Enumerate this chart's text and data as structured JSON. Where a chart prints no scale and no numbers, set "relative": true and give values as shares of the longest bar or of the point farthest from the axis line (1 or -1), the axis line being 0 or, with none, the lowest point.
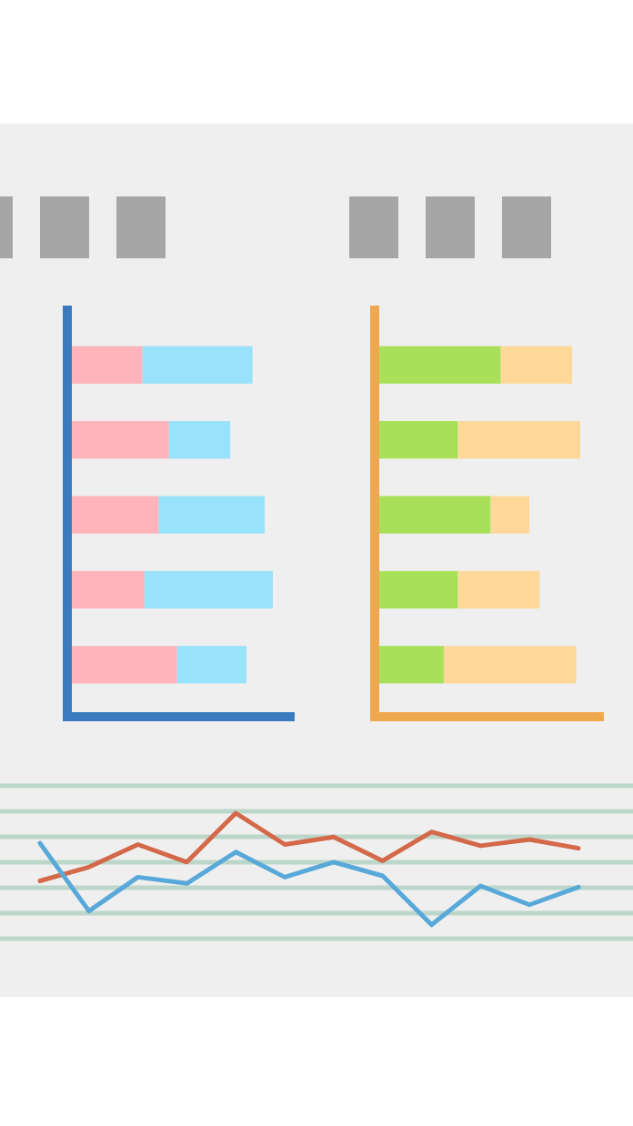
{
  "chart_data": [
    {
      "type": "bar",
      "orientation": "horizontal",
      "stacked": true,
      "relative": true,
      "categories": [
        null,
        null,
        null,
        null,
        null
      ],
      "series": [
        {
          "color": "#ffb3ba",
          "values": [
            0.36,
            0.49,
            0.44,
            0.37,
            0.53
          ]
        },
        {
          "color": "#98e2fb",
          "values": [
            0.54,
            0.3,
            0.52,
            0.63,
            0.34
          ]
        }
      ]
    },
    {
      "type": "bar",
      "orientation": "horizontal",
      "stacked": true,
      "relative": true,
      "categories": [
        null,
        null,
        null,
        null,
        null
      ],
      "series": [
        {
          "color": "#a8e05a",
          "values": [
            0.61,
            0.4,
            0.56,
            0.4,
            0.33
          ]
        },
        {
          "color": "#fdd899",
          "values": [
            0.35,
            0.6,
            0.19,
            0.4,
            0.65
          ]
        }
      ]
    },
    {
      "type": "line",
      "relative": true,
      "grid": true,
      "categories": [
        null,
        null,
        null,
        null,
        null,
        null,
        null,
        null,
        null,
        null,
        null,
        null
      ],
      "series": [
        {
          "color": "#d4694a",
          "values": [
            0.46,
            0.57,
            0.75,
            0.61,
            1.0,
            0.75,
            0.81,
            0.62,
            0.85,
            0.74,
            0.79,
            0.72
          ]
        },
        {
          "color": "#58a9d9",
          "values": [
            0.76,
            0.22,
            0.49,
            0.44,
            0.69,
            0.49,
            0.61,
            0.5,
            0.11,
            0.42,
            0.27,
            0.41
          ]
        }
      ]
    }
  ]
}
